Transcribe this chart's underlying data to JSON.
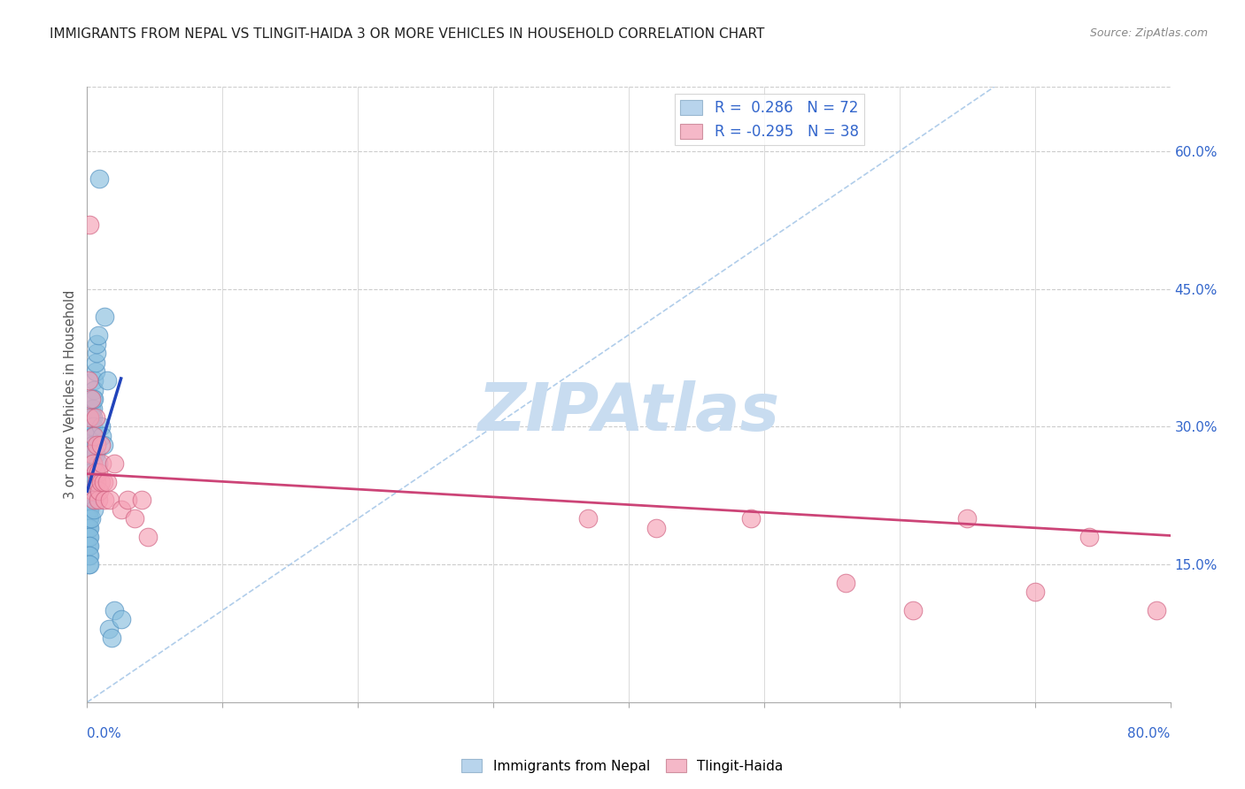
{
  "title": "IMMIGRANTS FROM NEPAL VS TLINGIT-HAIDA 3 OR MORE VEHICLES IN HOUSEHOLD CORRELATION CHART",
  "source": "Source: ZipAtlas.com",
  "ylabel": "3 or more Vehicles in Household",
  "right_ytick_labels": [
    "15.0%",
    "30.0%",
    "45.0%",
    "60.0%"
  ],
  "right_ytick_values": [
    0.15,
    0.3,
    0.45,
    0.6
  ],
  "xlim": [
    0.0,
    0.8
  ],
  "ylim": [
    0.0,
    0.67
  ],
  "x_tick_positions": [
    0.0,
    0.1,
    0.2,
    0.3,
    0.4,
    0.5,
    0.6,
    0.7,
    0.8
  ],
  "nepal_color": "#87BEDE",
  "tlingit_color": "#F5A0B5",
  "nepal_edge_color": "#5090C0",
  "tlingit_edge_color": "#D06080",
  "nepal_line_color": "#2244BB",
  "tlingit_line_color": "#CC4477",
  "nepal_R": 0.286,
  "nepal_N": 72,
  "tlingit_R": -0.295,
  "tlingit_N": 38,
  "nepal_scatter_x": [
    0.0,
    0.0,
    0.0,
    0.0,
    0.0,
    0.001,
    0.001,
    0.001,
    0.001,
    0.001,
    0.001,
    0.001,
    0.001,
    0.001,
    0.001,
    0.001,
    0.001,
    0.001,
    0.002,
    0.002,
    0.002,
    0.002,
    0.002,
    0.002,
    0.002,
    0.002,
    0.002,
    0.002,
    0.002,
    0.002,
    0.002,
    0.002,
    0.002,
    0.003,
    0.003,
    0.003,
    0.003,
    0.003,
    0.003,
    0.003,
    0.003,
    0.003,
    0.003,
    0.004,
    0.004,
    0.004,
    0.004,
    0.004,
    0.004,
    0.004,
    0.005,
    0.005,
    0.005,
    0.005,
    0.005,
    0.006,
    0.006,
    0.006,
    0.007,
    0.007,
    0.008,
    0.008,
    0.009,
    0.01,
    0.011,
    0.012,
    0.013,
    0.015,
    0.016,
    0.018,
    0.02,
    0.025
  ],
  "nepal_scatter_y": [
    0.2,
    0.22,
    0.19,
    0.18,
    0.17,
    0.24,
    0.21,
    0.2,
    0.19,
    0.18,
    0.17,
    0.16,
    0.15,
    0.22,
    0.23,
    0.25,
    0.21,
    0.2,
    0.26,
    0.24,
    0.23,
    0.22,
    0.21,
    0.2,
    0.19,
    0.18,
    0.17,
    0.16,
    0.27,
    0.25,
    0.28,
    0.3,
    0.15,
    0.28,
    0.29,
    0.27,
    0.26,
    0.25,
    0.24,
    0.3,
    0.31,
    0.32,
    0.2,
    0.33,
    0.32,
    0.31,
    0.3,
    0.29,
    0.28,
    0.27,
    0.35,
    0.34,
    0.33,
    0.22,
    0.21,
    0.36,
    0.37,
    0.27,
    0.38,
    0.39,
    0.4,
    0.26,
    0.57,
    0.3,
    0.29,
    0.28,
    0.42,
    0.35,
    0.08,
    0.07,
    0.1,
    0.09
  ],
  "tlingit_scatter_x": [
    0.001,
    0.002,
    0.002,
    0.003,
    0.003,
    0.004,
    0.004,
    0.005,
    0.005,
    0.006,
    0.006,
    0.007,
    0.007,
    0.008,
    0.008,
    0.009,
    0.01,
    0.01,
    0.011,
    0.012,
    0.013,
    0.015,
    0.017,
    0.02,
    0.025,
    0.03,
    0.035,
    0.04,
    0.045,
    0.37,
    0.42,
    0.49,
    0.56,
    0.61,
    0.65,
    0.7,
    0.74,
    0.79
  ],
  "tlingit_scatter_y": [
    0.35,
    0.52,
    0.31,
    0.33,
    0.27,
    0.26,
    0.23,
    0.29,
    0.22,
    0.25,
    0.31,
    0.28,
    0.24,
    0.22,
    0.25,
    0.23,
    0.24,
    0.28,
    0.26,
    0.24,
    0.22,
    0.24,
    0.22,
    0.26,
    0.21,
    0.22,
    0.2,
    0.22,
    0.18,
    0.2,
    0.19,
    0.2,
    0.13,
    0.1,
    0.2,
    0.12,
    0.18,
    0.1
  ],
  "background_color": "#ffffff",
  "grid_color": "#cccccc",
  "title_fontsize": 11,
  "watermark_text": "ZIPAtlas",
  "watermark_color": "#C8DCF0"
}
